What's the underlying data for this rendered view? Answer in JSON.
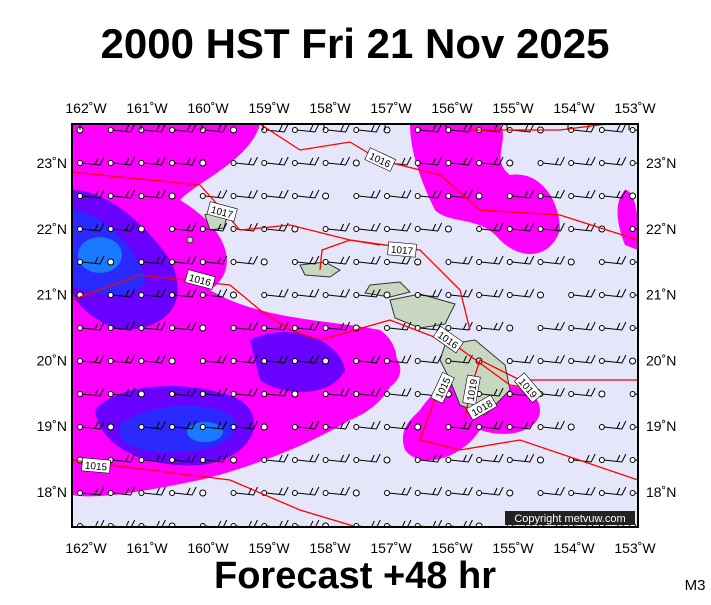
{
  "header": {
    "title": "2000 HST Fri 21 Nov 2025"
  },
  "map": {
    "lon_labels": [
      "162˚W",
      "161˚W",
      "160˚W",
      "159˚W",
      "158˚W",
      "157˚W",
      "156˚W",
      "155˚W",
      "154˚W",
      "153˚W"
    ],
    "lat_labels": [
      "23˚N",
      "22˚N",
      "21˚N",
      "20˚N",
      "19˚N",
      "18˚N"
    ],
    "isobar_labels": [
      "1016",
      "1017",
      "1017",
      "1016",
      "1016",
      "1015",
      "1019",
      "1018",
      "1019",
      "1015"
    ],
    "copyright": "Copyright metvuw.com"
  },
  "footer": {
    "caption": "Forecast +48 hr",
    "code": "M3"
  }
}
